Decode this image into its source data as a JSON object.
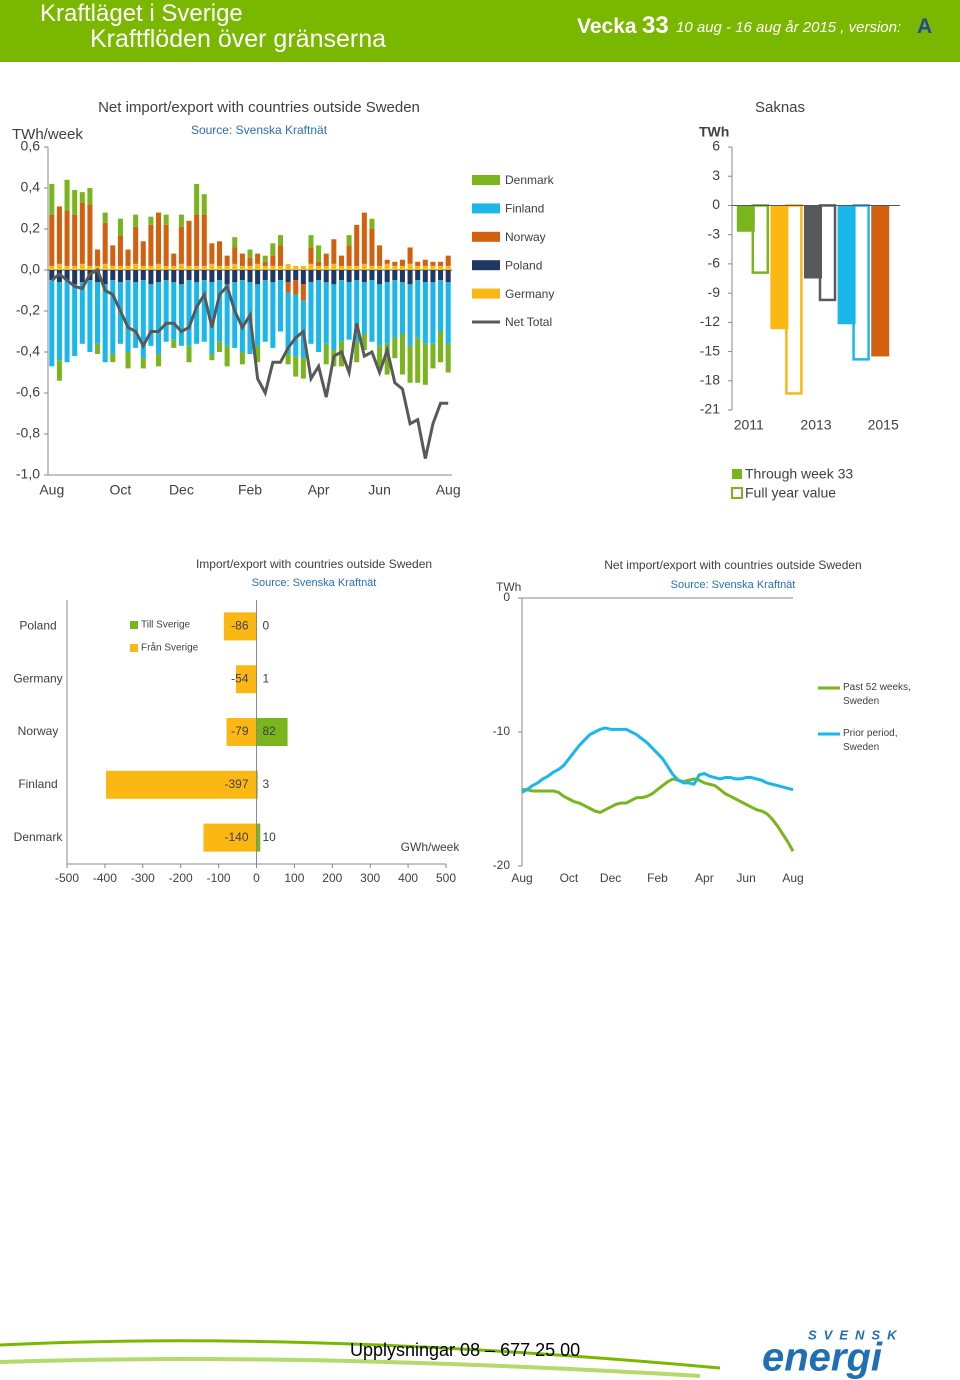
{
  "header": {
    "title": "Kraftläget i Sverige",
    "subtitle": "Kraftflöden över gränserna",
    "week_label": "Vecka",
    "week": "33",
    "period": "10 aug - 16 aug år 2015 , version:",
    "version": "A"
  },
  "footer": {
    "contact": "Upplysningar 08 – 677 25 00",
    "logo_top": "SVENSK",
    "logo_bottom": "energi"
  },
  "chart_data": [
    {
      "type": "stacked_bar",
      "title": "Net import/export with countries outside Sweden",
      "subtitle": "Source: Svenska Kraftnät",
      "ylabel": "TWh/week",
      "categories": [
        "Aug",
        null,
        null,
        null,
        null,
        null,
        null,
        null,
        null,
        "Oct",
        null,
        null,
        null,
        null,
        null,
        null,
        null,
        "Dec",
        null,
        null,
        null,
        null,
        null,
        null,
        null,
        null,
        "Feb",
        null,
        null,
        null,
        null,
        null,
        null,
        null,
        null,
        "Apr",
        null,
        null,
        null,
        null,
        null,
        null,
        null,
        "Jun",
        null,
        null,
        null,
        null,
        null,
        null,
        null,
        null,
        "Aug"
      ],
      "series": [
        {
          "name": "Denmark",
          "color": "#7ab51d",
          "values": [
            0.15,
            -0.1,
            0.15,
            0.12,
            0.05,
            0.08,
            -0.05,
            0.05,
            -0.04,
            0.08,
            -0.08,
            0.06,
            -0.05,
            0.04,
            -0.06,
            0.05,
            -0.04,
            0.06,
            -0.08,
            0.15,
            0.1,
            -0.03,
            -0.05,
            -0.1,
            0.05,
            -0.06,
            0.04,
            -0.08,
            0.03,
            0.06,
            0.05,
            -0.05,
            -0.1,
            -0.1,
            0.06,
            0.08,
            -0.1,
            -0.08,
            -0.12,
            0.05,
            -0.1,
            -0.08,
            0.05,
            -0.12,
            -0.15,
            -0.1,
            -0.2,
            -0.18,
            -0.22,
            -0.2,
            -0.12,
            -0.15,
            -0.14
          ]
        },
        {
          "name": "Finland",
          "color": "#1ab7ea",
          "values": [
            -0.42,
            -0.38,
            -0.4,
            -0.35,
            -0.3,
            -0.35,
            -0.3,
            -0.38,
            -0.36,
            -0.3,
            -0.35,
            -0.32,
            -0.38,
            -0.3,
            -0.35,
            -0.3,
            -0.28,
            -0.3,
            -0.32,
            -0.3,
            -0.3,
            -0.35,
            -0.3,
            -0.3,
            -0.32,
            -0.35,
            -0.35,
            -0.3,
            -0.3,
            -0.32,
            -0.25,
            -0.3,
            -0.3,
            -0.28,
            -0.3,
            -0.35,
            -0.3,
            -0.32,
            -0.3,
            -0.28,
            -0.3,
            -0.25,
            -0.3,
            -0.3,
            -0.3,
            -0.28,
            -0.25,
            -0.3,
            -0.28,
            -0.3,
            -0.3,
            -0.25,
            -0.3
          ]
        },
        {
          "name": "Norway",
          "color": "#d2600f",
          "values": [
            0.25,
            0.28,
            0.27,
            0.25,
            0.3,
            0.3,
            0.08,
            0.2,
            0.1,
            0.15,
            0.08,
            0.18,
            0.12,
            0.2,
            0.25,
            0.2,
            0.06,
            0.18,
            0.22,
            0.25,
            0.25,
            0.1,
            0.12,
            0.05,
            0.08,
            0.06,
            0.04,
            0.05,
            0.02,
            0.05,
            0.1,
            -0.05,
            -0.07,
            -0.08,
            0.08,
            0.02,
            0.06,
            0.12,
            0.05,
            0.1,
            0.2,
            0.25,
            0.18,
            0.1,
            0.02,
            0.02,
            0.03,
            0.08,
            0.02,
            0.03,
            0.02,
            0.02,
            0.05
          ]
        },
        {
          "name": "Poland",
          "color": "#1f3864",
          "values": [
            -0.05,
            -0.06,
            -0.05,
            -0.07,
            -0.06,
            -0.05,
            -0.06,
            -0.07,
            -0.05,
            -0.06,
            -0.05,
            -0.06,
            -0.05,
            -0.07,
            -0.06,
            -0.05,
            -0.06,
            -0.07,
            -0.05,
            -0.06,
            -0.05,
            -0.06,
            -0.05,
            -0.07,
            -0.06,
            -0.05,
            -0.06,
            -0.07,
            -0.05,
            -0.06,
            -0.05,
            -0.06,
            -0.05,
            -0.07,
            -0.06,
            -0.05,
            -0.06,
            -0.07,
            -0.05,
            -0.06,
            -0.05,
            -0.06,
            -0.05,
            -0.07,
            -0.06,
            -0.05,
            -0.06,
            -0.07,
            -0.05,
            -0.06,
            -0.06,
            -0.05,
            -0.06
          ]
        },
        {
          "name": "Germany",
          "color": "#fbb814",
          "values": [
            0.02,
            0.03,
            0.02,
            0.02,
            0.03,
            0.02,
            0.02,
            0.03,
            0.02,
            0.02,
            0.02,
            0.03,
            0.02,
            0.02,
            0.03,
            0.02,
            0.02,
            0.03,
            0.02,
            0.02,
            0.02,
            0.03,
            0.02,
            0.02,
            0.03,
            0.02,
            0.02,
            0.03,
            0.02,
            0.02,
            0.02,
            0.03,
            0.02,
            0.02,
            0.03,
            0.02,
            0.02,
            0.03,
            0.02,
            0.02,
            0.02,
            0.03,
            0.02,
            0.02,
            0.03,
            0.02,
            0.02,
            0.03,
            0.02,
            0.02,
            0.02,
            0.02,
            0.02
          ]
        },
        {
          "name": "Net Total",
          "color": "#595959",
          "type": "line",
          "values": [
            -0.05,
            -0.02,
            -0.05,
            -0.08,
            -0.09,
            -0.02,
            0,
            -0.1,
            -0.12,
            -0.2,
            -0.28,
            -0.3,
            -0.37,
            -0.3,
            -0.3,
            -0.26,
            -0.26,
            -0.3,
            -0.28,
            -0.18,
            -0.12,
            -0.28,
            -0.12,
            -0.08,
            -0.2,
            -0.28,
            -0.22,
            -0.53,
            -0.6,
            -0.45,
            -0.45,
            -0.38,
            -0.33,
            -0.3,
            -0.53,
            -0.47,
            -0.62,
            -0.42,
            -0.4,
            -0.5,
            -0.26,
            -0.42,
            -0.4,
            -0.5,
            -0.39,
            -0.55,
            -0.58,
            -0.75,
            -0.73,
            -0.92,
            -0.75,
            -0.65,
            -0.65
          ]
        }
      ],
      "ylim": [
        -1,
        0.6
      ],
      "yticks": [
        {
          "value": 0.6,
          "label": "0,6"
        },
        {
          "value": 0.4,
          "label": "0,4"
        },
        {
          "value": 0.2,
          "label": "0,2"
        },
        {
          "value": 0,
          "label": "0,0"
        },
        {
          "value": -0.2,
          "label": "-0,2"
        },
        {
          "value": -0.4,
          "label": "-0,4"
        },
        {
          "value": -0.6,
          "label": "-0,6"
        },
        {
          "value": -0.8,
          "label": "-0,8"
        },
        {
          "value": -1,
          "label": "-1,0"
        }
      ]
    },
    {
      "type": "bar",
      "title": "Saknas",
      "ylabel": "TWh",
      "categories": [
        "2011",
        null,
        "2013",
        null,
        "2015"
      ],
      "colors": [
        "#7ab51d",
        "#fbb814",
        "#595959",
        "#1ab7ea",
        "#d2600f"
      ],
      "series": [
        {
          "name": "Through week 33",
          "values": [
            -2.7,
            -12.7,
            -7.5,
            -12.2,
            -15.5
          ]
        },
        {
          "name": "Full year value",
          "outline": true,
          "values": [
            -6.9,
            -19.3,
            -9.7,
            -15.8,
            null
          ]
        }
      ],
      "ylim": [
        -21,
        6
      ],
      "yticks": [
        6,
        3,
        0,
        -3,
        -6,
        -9,
        -12,
        -15,
        -18,
        -21
      ]
    },
    {
      "type": "hbar",
      "title": "Import/export with countries outside Sweden",
      "subtitle": "Source: Svenska Kraftnät",
      "xlabel": "GWh/week",
      "categories": [
        "Poland",
        "Germany",
        "Norway",
        "Finland",
        "Denmark"
      ],
      "series": [
        {
          "name": "Till Sverige",
          "color": "#7ab51d",
          "values": [
            0,
            1,
            82,
            3,
            10
          ]
        },
        {
          "name": "Från Sverige",
          "color": "#fbb814",
          "values": [
            -86,
            -54,
            -79,
            -397,
            -140
          ]
        }
      ],
      "xlim": [
        -500,
        500
      ],
      "xticks": [
        -500,
        -400,
        -300,
        -200,
        -100,
        0,
        100,
        200,
        300,
        400,
        500
      ]
    },
    {
      "type": "line",
      "title": "Net import/export with countries outside Sweden",
      "subtitle": "Source: Svenska Kraftnät",
      "ylabel": "TWh",
      "categories": [
        "Aug",
        null,
        null,
        null,
        null,
        null,
        null,
        null,
        null,
        "Oct",
        null,
        null,
        null,
        null,
        null,
        null,
        null,
        "Dec",
        null,
        null,
        null,
        null,
        null,
        null,
        null,
        null,
        "Feb",
        null,
        null,
        null,
        null,
        null,
        null,
        null,
        null,
        "Apr",
        null,
        null,
        null,
        null,
        null,
        null,
        null,
        "Jun",
        null,
        null,
        null,
        null,
        null,
        null,
        null,
        null,
        "Aug"
      ],
      "series": [
        {
          "name": "Past 52 weeks, Sweden",
          "color": "#7ab51d",
          "values": [
            -14.3,
            -14.3,
            -14.4,
            -14.4,
            -14.4,
            -14.4,
            -14.4,
            -14.5,
            -14.8,
            -15.0,
            -15.2,
            -15.3,
            -15.5,
            -15.7,
            -15.9,
            -16.0,
            -15.8,
            -15.6,
            -15.4,
            -15.3,
            -15.3,
            -15.1,
            -14.9,
            -14.9,
            -14.8,
            -14.6,
            -14.3,
            -14.0,
            -13.7,
            -13.5,
            -13.6,
            -13.7,
            -13.6,
            -13.5,
            -13.6,
            -13.8,
            -13.9,
            -14.0,
            -14.3,
            -14.6,
            -14.8,
            -15.0,
            -15.2,
            -15.4,
            -15.6,
            -15.8,
            -15.9,
            -16.1,
            -16.5,
            -17.0,
            -17.6,
            -18.2,
            -18.9
          ]
        },
        {
          "name": "Prior period, Sweden",
          "color": "#1ab7ea",
          "values": [
            -14.5,
            -14.3,
            -14.0,
            -13.8,
            -13.5,
            -13.3,
            -13.0,
            -12.8,
            -12.5,
            -12.0,
            -11.5,
            -11.0,
            -10.6,
            -10.2,
            -10.0,
            -9.8,
            -9.7,
            -9.8,
            -9.8,
            -9.8,
            -9.8,
            -10.0,
            -10.2,
            -10.5,
            -10.8,
            -11.2,
            -11.6,
            -12.0,
            -12.6,
            -13.2,
            -13.6,
            -13.8,
            -13.8,
            -13.9,
            -13.2,
            -13.1,
            -13.3,
            -13.4,
            -13.5,
            -13.4,
            -13.4,
            -13.5,
            -13.5,
            -13.4,
            -13.4,
            -13.5,
            -13.6,
            -13.8,
            -13.9,
            -14.0,
            -14.1,
            -14.2,
            -14.3
          ]
        }
      ],
      "ylim": [
        -20,
        0
      ],
      "yticks": [
        0,
        -10,
        -20
      ]
    }
  ]
}
